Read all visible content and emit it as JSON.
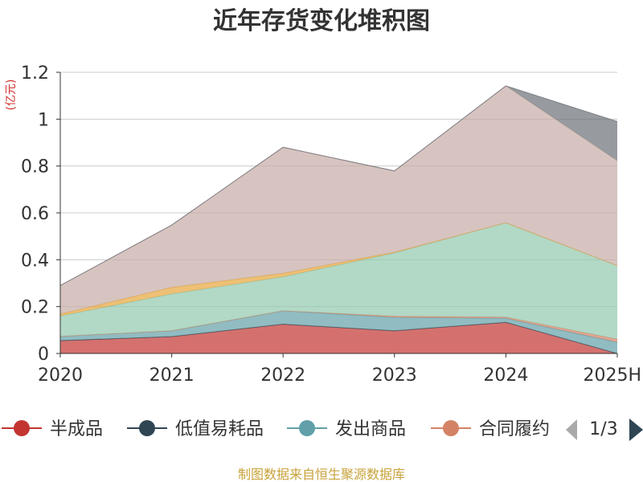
{
  "chart_data": {
    "type": "area",
    "stacked": true,
    "title": "近年存货变化堆积图",
    "unit_label": "(亿元)",
    "categories": [
      "2020",
      "2021",
      "2022",
      "2023",
      "2024",
      "2025H"
    ],
    "ylim": [
      0,
      1.2
    ],
    "yticks": [
      0,
      0.2,
      0.4,
      0.6,
      0.8,
      1,
      1.2
    ],
    "ytick_labels": [
      "0",
      "0.2",
      "0.4",
      "0.6",
      "0.8",
      "1",
      "1.2"
    ],
    "grid": true,
    "legend_position": "bottom",
    "series": [
      {
        "name": "半成品",
        "color": "#c23531",
        "values": [
          0.055,
          0.072,
          0.125,
          0.097,
          0.133,
          0.0
        ]
      },
      {
        "name": "低值易耗品",
        "color": "#2f4554",
        "values": [
          0,
          0,
          0,
          0,
          0,
          0
        ]
      },
      {
        "name": "发出商品",
        "color": "#61a0a8",
        "values": [
          0.018,
          0.025,
          0.057,
          0.057,
          0.017,
          0.048
        ]
      },
      {
        "name": "合同履约成本",
        "color": "#d48265",
        "values": [
          0,
          0,
          0,
          0.005,
          0.005,
          0.013
        ]
      },
      {
        "series_note": "",
        "name": "",
        "color": "#91c7ae",
        "values": [
          0.087,
          0.157,
          0.145,
          0.27,
          0.403,
          0.314
        ],
        "hidden_name": true
      },
      {
        "name": "",
        "color": "#e5a53a",
        "values": [
          0.008,
          0.028,
          0.015,
          0.003,
          0.0,
          0.0
        ],
        "hidden_name": true
      },
      {
        "name": "",
        "color": "#c6aba5",
        "values": [
          0.122,
          0.266,
          0.538,
          0.347,
          0.584,
          0.448
        ],
        "hidden_name": true
      },
      {
        "name": "",
        "color": "#6b7078",
        "values": [
          0,
          0,
          0,
          0,
          0,
          0.167
        ],
        "hidden_name": true
      }
    ]
  },
  "legend": {
    "items": [
      {
        "label": "半成品",
        "color": "#c23531"
      },
      {
        "label": "低值易耗品",
        "color": "#2f4554"
      },
      {
        "label": "发出商品",
        "color": "#61a0a8"
      },
      {
        "label": "合同履约",
        "color": "#d48265"
      }
    ],
    "page_indicator": "1/3"
  },
  "footer": "制图数据来自恒生聚源数据库"
}
